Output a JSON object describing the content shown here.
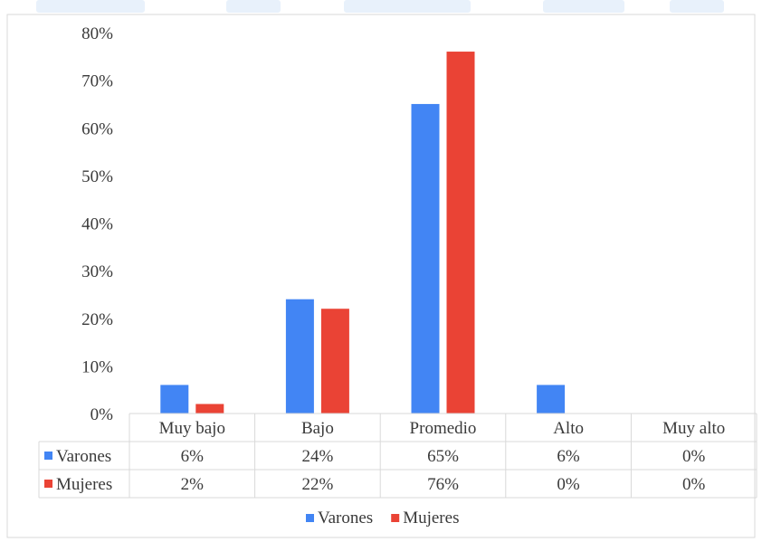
{
  "colors": {
    "varones": "#4285f4",
    "mujeres": "#ea4335",
    "grid": "#d9d9d9",
    "watermark": "#e8f1fb"
  },
  "chart_data": {
    "type": "bar",
    "categories": [
      "Muy bajo",
      "Bajo",
      "Promedio",
      "Alto",
      "Muy alto"
    ],
    "series": [
      {
        "name": "Varones",
        "values": [
          6,
          24,
          65,
          6,
          0
        ],
        "labels": [
          "6%",
          "24%",
          "65%",
          "6%",
          "0%"
        ]
      },
      {
        "name": "Mujeres",
        "values": [
          2,
          22,
          76,
          0,
          0
        ],
        "labels": [
          "2%",
          "22%",
          "76%",
          "0%",
          "0%"
        ]
      }
    ],
    "y_unit": "%",
    "ylim": [
      0,
      80
    ],
    "ytick_step": 10,
    "ytick_labels": [
      "0%",
      "10%",
      "20%",
      "30%",
      "40%",
      "50%",
      "60%",
      "70%",
      "80%"
    ],
    "gridlines": false,
    "data_table": true,
    "legend_position": "bottom"
  }
}
